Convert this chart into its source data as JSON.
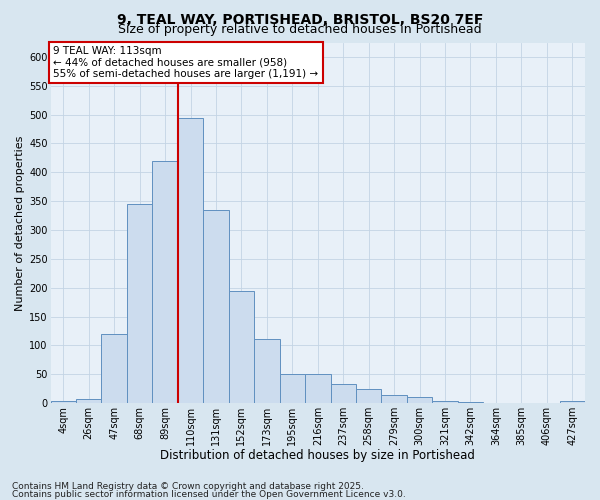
{
  "title1": "9, TEAL WAY, PORTISHEAD, BRISTOL, BS20 7EF",
  "title2": "Size of property relative to detached houses in Portishead",
  "xlabel": "Distribution of detached houses by size in Portishead",
  "ylabel": "Number of detached properties",
  "bin_labels": [
    "4sqm",
    "26sqm",
    "47sqm",
    "68sqm",
    "89sqm",
    "110sqm",
    "131sqm",
    "152sqm",
    "173sqm",
    "195sqm",
    "216sqm",
    "237sqm",
    "258sqm",
    "279sqm",
    "300sqm",
    "321sqm",
    "342sqm",
    "364sqm",
    "385sqm",
    "406sqm",
    "427sqm"
  ],
  "bar_values": [
    4,
    8,
    120,
    345,
    420,
    495,
    335,
    195,
    112,
    50,
    50,
    33,
    25,
    15,
    10,
    3,
    2,
    1,
    1,
    1,
    4
  ],
  "bar_color": "#ccdcee",
  "bar_edge_color": "#6090c0",
  "vline_x_idx": 5,
  "vline_color": "#cc0000",
  "annotation_text": "9 TEAL WAY: 113sqm\n← 44% of detached houses are smaller (958)\n55% of semi-detached houses are larger (1,191) →",
  "annotation_box_color": "#ffffff",
  "annotation_box_edge": "#cc0000",
  "grid_color": "#c4d4e4",
  "bg_color": "#d8e6f0",
  "plot_bg": "#e8f0f8",
  "ylim": [
    0,
    625
  ],
  "yticks": [
    0,
    50,
    100,
    150,
    200,
    250,
    300,
    350,
    400,
    450,
    500,
    550,
    600
  ],
  "footer1": "Contains HM Land Registry data © Crown copyright and database right 2025.",
  "footer2": "Contains public sector information licensed under the Open Government Licence v3.0.",
  "title1_fontsize": 10,
  "title2_fontsize": 9,
  "xlabel_fontsize": 8.5,
  "ylabel_fontsize": 8,
  "tick_fontsize": 7,
  "annot_fontsize": 7.5,
  "footer_fontsize": 6.5
}
